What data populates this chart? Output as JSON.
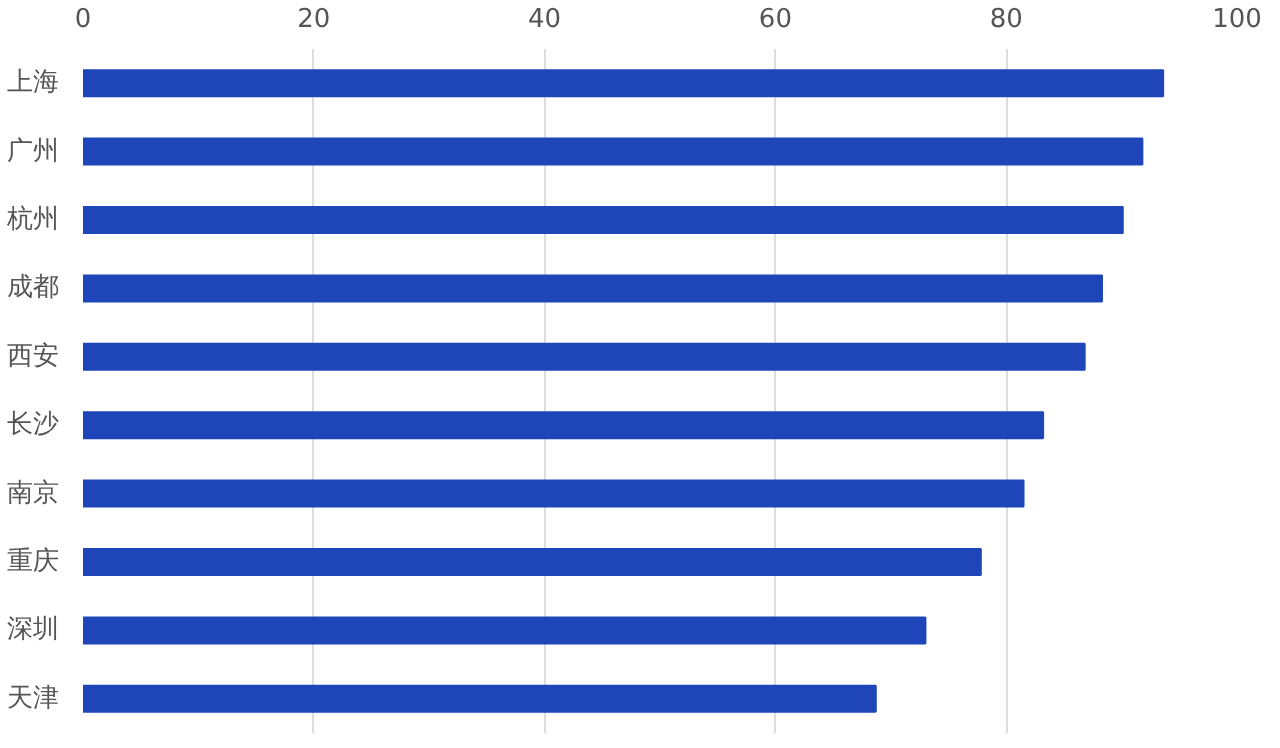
{
  "chart_data": {
    "type": "bar",
    "orientation": "horizontal",
    "categories": [
      "上海",
      "广州",
      "杭州",
      "成都",
      "西安",
      "长沙",
      "南京",
      "重庆",
      "深圳",
      "天津"
    ],
    "values": [
      93.6,
      91.8,
      90.1,
      88.3,
      86.8,
      83.2,
      81.5,
      77.8,
      73,
      68.7
    ],
    "color": "#1f46b8",
    "xlim": [
      0,
      100
    ],
    "xticks": [
      0,
      20,
      40,
      60,
      80,
      100
    ],
    "grid": "x"
  }
}
